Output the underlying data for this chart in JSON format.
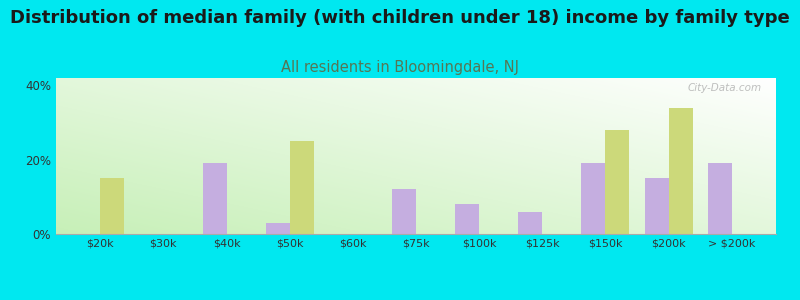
{
  "title": "Distribution of median family (with children under 18) income by family type",
  "subtitle": "All residents in Bloomingdale, NJ",
  "categories": [
    "$20k",
    "$30k",
    "$40k",
    "$50k",
    "$60k",
    "$75k",
    "$100k",
    "$125k",
    "$150k",
    "$200k",
    "> $200k"
  ],
  "married_values": [
    0,
    0,
    19,
    3,
    0,
    12,
    8,
    6,
    19,
    15,
    19
  ],
  "female_values": [
    15,
    0,
    0,
    25,
    0,
    0,
    0,
    0,
    28,
    34,
    0
  ],
  "married_color": "#c5aee0",
  "female_color": "#ccd97a",
  "background_outer": "#00e8f0",
  "chart_bg_top": "#f8fff8",
  "chart_bg_bottom": "#c8e8b0",
  "ylim": [
    0,
    42
  ],
  "yticks": [
    0,
    20,
    40
  ],
  "ytick_labels": [
    "0%",
    "20%",
    "40%"
  ],
  "bar_width": 0.38,
  "title_fontsize": 13,
  "subtitle_fontsize": 10.5,
  "subtitle_color": "#557755",
  "watermark": "City-Data.com"
}
